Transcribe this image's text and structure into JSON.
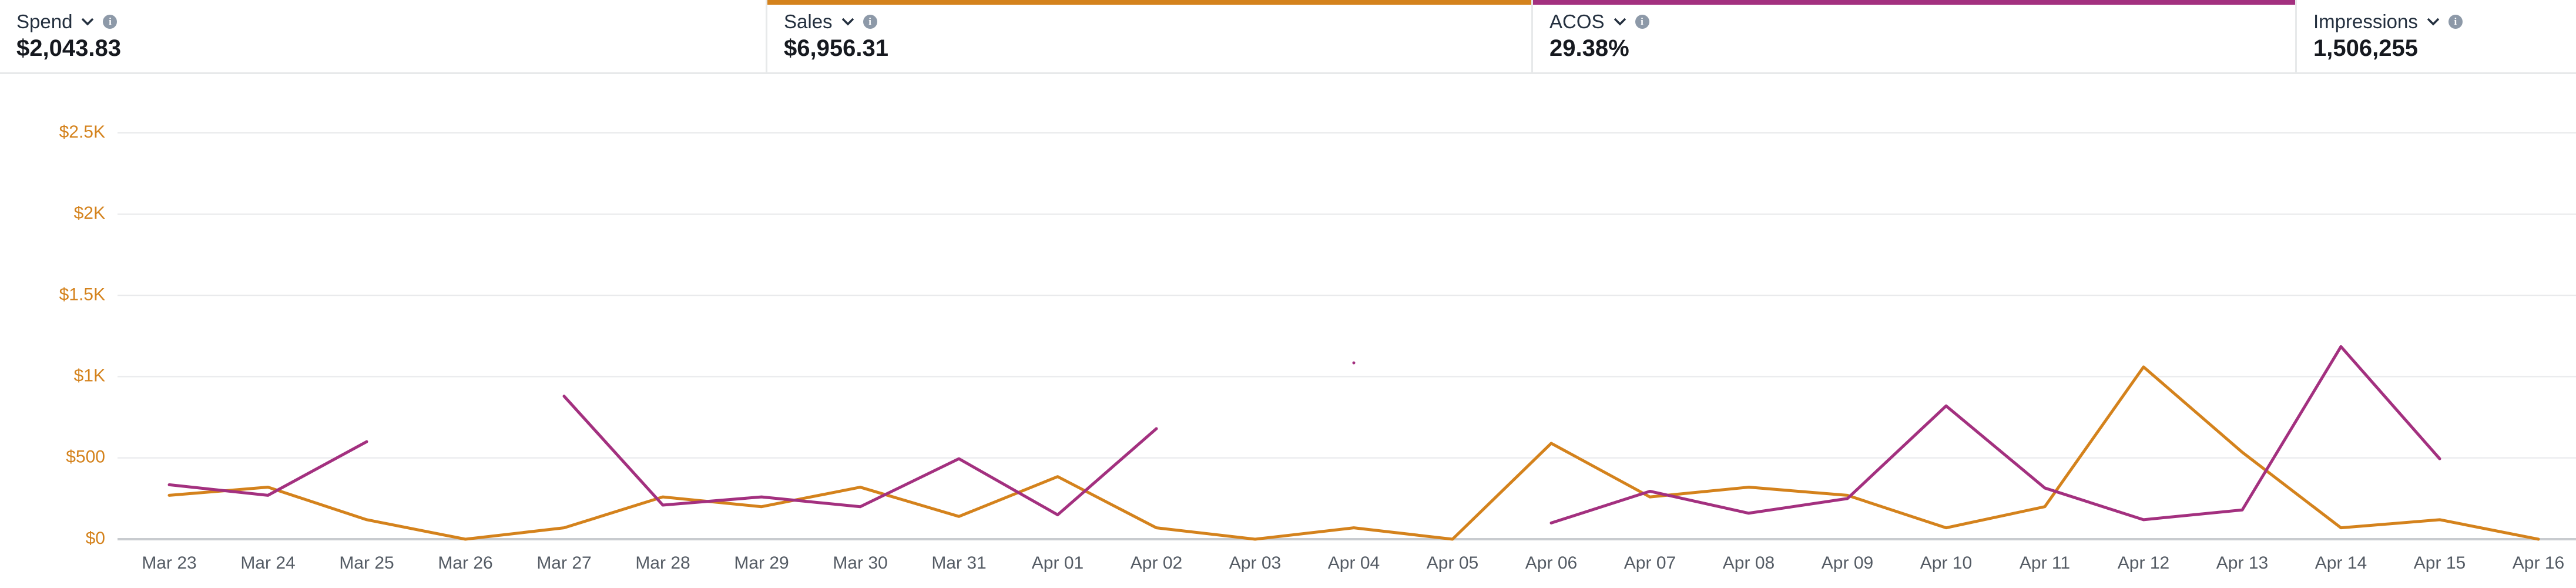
{
  "metrics": [
    {
      "label": "Spend",
      "value": "$2,043.83"
    },
    {
      "label": "Sales",
      "value": "$6,956.31"
    },
    {
      "label": "ACOS",
      "value": "29.38%"
    },
    {
      "label": "Impressions",
      "value": "1,506,255"
    }
  ],
  "chart_data": {
    "type": "line",
    "categories": [
      "Mar 23",
      "Mar 24",
      "Mar 25",
      "Mar 26",
      "Mar 27",
      "Mar 28",
      "Mar 29",
      "Mar 30",
      "Mar 31",
      "Apr 01",
      "Apr 02",
      "Apr 03",
      "Apr 04",
      "Apr 05",
      "Apr 06",
      "Apr 07",
      "Apr 08",
      "Apr 09",
      "Apr 10",
      "Apr 11",
      "Apr 12",
      "Apr 13",
      "Apr 14",
      "Apr 15",
      "Apr 16"
    ],
    "series": [
      {
        "name": "Sales",
        "color": "#d4821c",
        "values": [
          270,
          320,
          120,
          0,
          70,
          260,
          200,
          320,
          140,
          385,
          70,
          0,
          70,
          0,
          590,
          260,
          320,
          270,
          70,
          200,
          1060,
          535,
          70,
          120,
          0
        ]
      },
      {
        "name": "ACOS",
        "color": "#a3307f",
        "values": [
          335,
          270,
          600,
          null,
          880,
          210,
          260,
          200,
          495,
          150,
          680,
          null,
          1085,
          null,
          100,
          295,
          160,
          250,
          820,
          315,
          120,
          180,
          1185,
          495,
          null
        ]
      }
    ],
    "ylim": [
      0,
      2500
    ],
    "yticks": [
      {
        "value": 0,
        "label": "$0"
      },
      {
        "value": 500,
        "label": "$500"
      },
      {
        "value": 1000,
        "label": "$1K"
      },
      {
        "value": 1500,
        "label": "$1.5K"
      },
      {
        "value": 2000,
        "label": "$2K"
      },
      {
        "value": 2500,
        "label": "$2.5K"
      }
    ],
    "grid": true
  }
}
